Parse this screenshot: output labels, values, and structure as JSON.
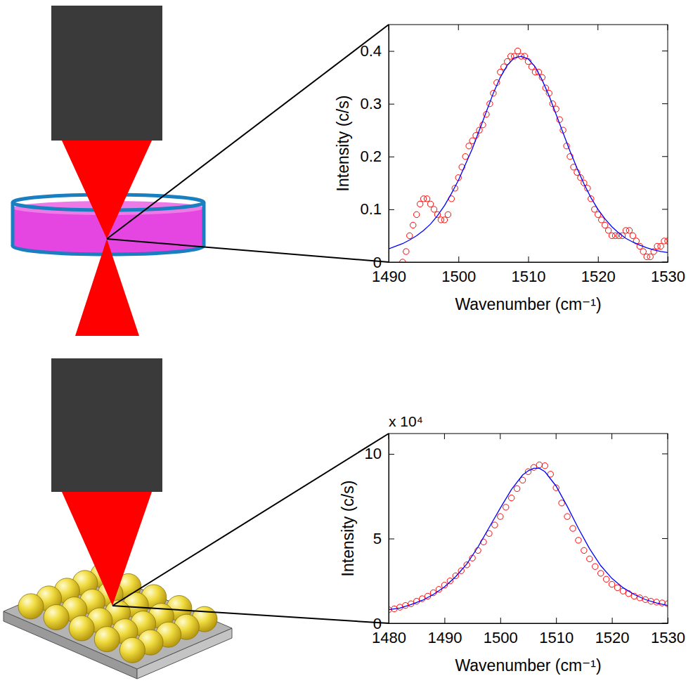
{
  "chart_data": [
    {
      "type": "scatter",
      "xlabel": "Wavenumber (cm⁻¹)",
      "ylabel": "Intensity (c/s)",
      "xlim": [
        1490,
        1530
      ],
      "ylim": [
        0,
        0.45
      ],
      "xticks": [
        1490,
        1500,
        1510,
        1520,
        1530
      ],
      "yticks": [
        0,
        0.1,
        0.2,
        0.3,
        0.4
      ],
      "series": [
        {
          "type": "scatter",
          "color": "#ff0000",
          "marker": "circle",
          "x": [
            1492,
            1492.5,
            1493,
            1493.5,
            1494,
            1494.5,
            1495,
            1495.5,
            1496,
            1496.5,
            1497,
            1497.5,
            1498,
            1498.5,
            1499,
            1499.5,
            1500,
            1500.5,
            1501,
            1501.5,
            1502,
            1502.5,
            1503,
            1503.5,
            1504,
            1504.5,
            1505,
            1505.5,
            1506,
            1506.5,
            1507,
            1507.5,
            1508,
            1508.5,
            1509,
            1509.5,
            1510,
            1510.5,
            1511,
            1511.5,
            1512,
            1512.5,
            1513,
            1513.5,
            1514,
            1514.5,
            1515,
            1515.5,
            1516,
            1516.5,
            1517,
            1517.5,
            1518,
            1518.5,
            1519,
            1519.5,
            1520,
            1520.5,
            1521,
            1521.5,
            1522,
            1522.5,
            1523,
            1523.5,
            1524,
            1524.5,
            1525,
            1525.5,
            1526,
            1526.5,
            1527,
            1527.5,
            1528,
            1528.5,
            1529,
            1529.5,
            1530
          ],
          "values": [
            0,
            0.02,
            0.05,
            0.07,
            0.09,
            0.11,
            0.12,
            0.12,
            0.11,
            0.1,
            0.09,
            0.08,
            0.08,
            0.09,
            0.12,
            0.14,
            0.16,
            0.18,
            0.2,
            0.22,
            0.23,
            0.24,
            0.25,
            0.26,
            0.28,
            0.3,
            0.32,
            0.34,
            0.36,
            0.37,
            0.38,
            0.39,
            0.39,
            0.4,
            0.39,
            0.39,
            0.38,
            0.37,
            0.36,
            0.36,
            0.35,
            0.33,
            0.32,
            0.3,
            0.29,
            0.27,
            0.25,
            0.22,
            0.2,
            0.18,
            0.17,
            0.16,
            0.15,
            0.14,
            0.12,
            0.1,
            0.09,
            0.08,
            0.07,
            0.06,
            0.05,
            0.05,
            0.05,
            0.05,
            0.06,
            0.06,
            0.05,
            0.04,
            0.03,
            0.02,
            0.01,
            0.01,
            0.02,
            0.03,
            0.03,
            0.04,
            0.04
          ]
        },
        {
          "type": "line",
          "color": "#0000ff",
          "line_style": "solid",
          "x": [
            1490,
            1491,
            1492,
            1493,
            1494,
            1495,
            1496,
            1497,
            1498,
            1499,
            1500,
            1501,
            1502,
            1503,
            1504,
            1505,
            1506,
            1507,
            1508,
            1509,
            1510,
            1511,
            1512,
            1513,
            1514,
            1515,
            1516,
            1517,
            1518,
            1519,
            1520,
            1521,
            1522,
            1523,
            1524,
            1525,
            1526,
            1527,
            1528,
            1529,
            1530
          ],
          "values": [
            0.025,
            0.03,
            0.035,
            0.042,
            0.05,
            0.06,
            0.072,
            0.088,
            0.107,
            0.13,
            0.155,
            0.185,
            0.215,
            0.25,
            0.285,
            0.32,
            0.35,
            0.373,
            0.387,
            0.39,
            0.385,
            0.37,
            0.345,
            0.315,
            0.28,
            0.245,
            0.21,
            0.178,
            0.148,
            0.122,
            0.1,
            0.082,
            0.067,
            0.055,
            0.045,
            0.038,
            0.032,
            0.027,
            0.023,
            0.02,
            0.018
          ]
        }
      ]
    },
    {
      "type": "scatter",
      "xlabel": "Wavenumber (cm⁻¹)",
      "ylabel": "Intensity (c/s)",
      "annotation": "x 10⁴",
      "xlim": [
        1480,
        1530
      ],
      "ylim": [
        0,
        11.2
      ],
      "xticks": [
        1480,
        1490,
        1500,
        1510,
        1520,
        1530
      ],
      "yticks": [
        0,
        5,
        10
      ],
      "series": [
        {
          "type": "scatter",
          "color": "#ff0000",
          "marker": "circle",
          "x": [
            1480,
            1481,
            1482,
            1483,
            1484,
            1485,
            1486,
            1487,
            1488,
            1489,
            1490,
            1491,
            1492,
            1493,
            1494,
            1495,
            1496,
            1497,
            1498,
            1499,
            1500,
            1501,
            1502,
            1503,
            1504,
            1505,
            1506,
            1507,
            1508,
            1509,
            1510,
            1511,
            1512,
            1513,
            1514,
            1515,
            1516,
            1517,
            1518,
            1519,
            1520,
            1521,
            1522,
            1523,
            1524,
            1525,
            1526,
            1527,
            1528,
            1529,
            1530
          ],
          "values": [
            0.8,
            0.85,
            0.95,
            1.05,
            1.15,
            1.3,
            1.45,
            1.6,
            1.8,
            2.0,
            2.25,
            2.5,
            2.8,
            3.1,
            3.45,
            3.85,
            4.3,
            4.8,
            5.3,
            5.8,
            6.3,
            6.85,
            7.4,
            7.95,
            8.45,
            8.95,
            9.2,
            9.35,
            9.3,
            8.8,
            8.0,
            7.1,
            6.3,
            5.6,
            4.9,
            4.3,
            3.8,
            3.35,
            2.95,
            2.6,
            2.3,
            2.1,
            1.9,
            1.75,
            1.6,
            1.5,
            1.4,
            1.3,
            1.25,
            1.2,
            1.15
          ]
        },
        {
          "type": "line",
          "color": "#0000ff",
          "line_style": "solid",
          "x": [
            1480,
            1482,
            1484,
            1486,
            1488,
            1490,
            1492,
            1494,
            1496,
            1498,
            1500,
            1502,
            1504,
            1505,
            1506,
            1507,
            1508,
            1510,
            1512,
            1514,
            1516,
            1518,
            1520,
            1522,
            1524,
            1526,
            1528,
            1530
          ],
          "values": [
            0.8,
            0.9,
            1.1,
            1.35,
            1.7,
            2.15,
            2.75,
            3.5,
            4.5,
            5.65,
            6.8,
            7.9,
            8.75,
            9.0,
            9.15,
            9.15,
            8.95,
            8.1,
            6.9,
            5.6,
            4.4,
            3.4,
            2.65,
            2.1,
            1.7,
            1.4,
            1.2,
            1.05
          ]
        }
      ]
    }
  ]
}
